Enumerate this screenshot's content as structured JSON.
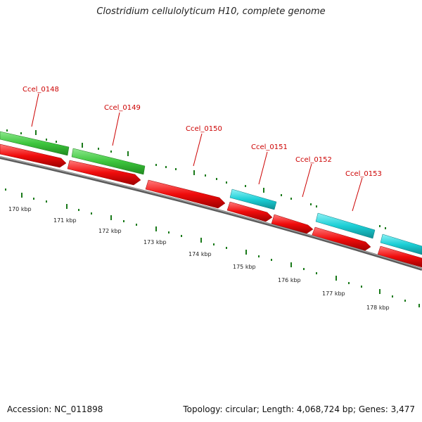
{
  "title": "Clostridium cellulolyticum H10, complete genome",
  "footer": {
    "accession": "Accession: NC_011898",
    "summary": "Topology: circular; Length: 4,068,724 bp; Genes: 3,477"
  },
  "colors": {
    "green": "#3ec63e",
    "red": "#f00c0c",
    "cyan": "#1ccfd6",
    "backbone": "#808080",
    "tick": "#1a7a1a",
    "gene_label": "#cc0000"
  },
  "scale_labels": [
    "170 kbp",
    "171 kbp",
    "172 kbp",
    "173 kbp",
    "174 kbp",
    "175 kbp",
    "176 kbp",
    "177 kbp",
    "178 kbp"
  ],
  "gene_labels": [
    "Ccel_0148",
    "Ccel_0149",
    "Ccel_0150",
    "Ccel_0151",
    "Ccel_0152",
    "Ccel_0153"
  ]
}
